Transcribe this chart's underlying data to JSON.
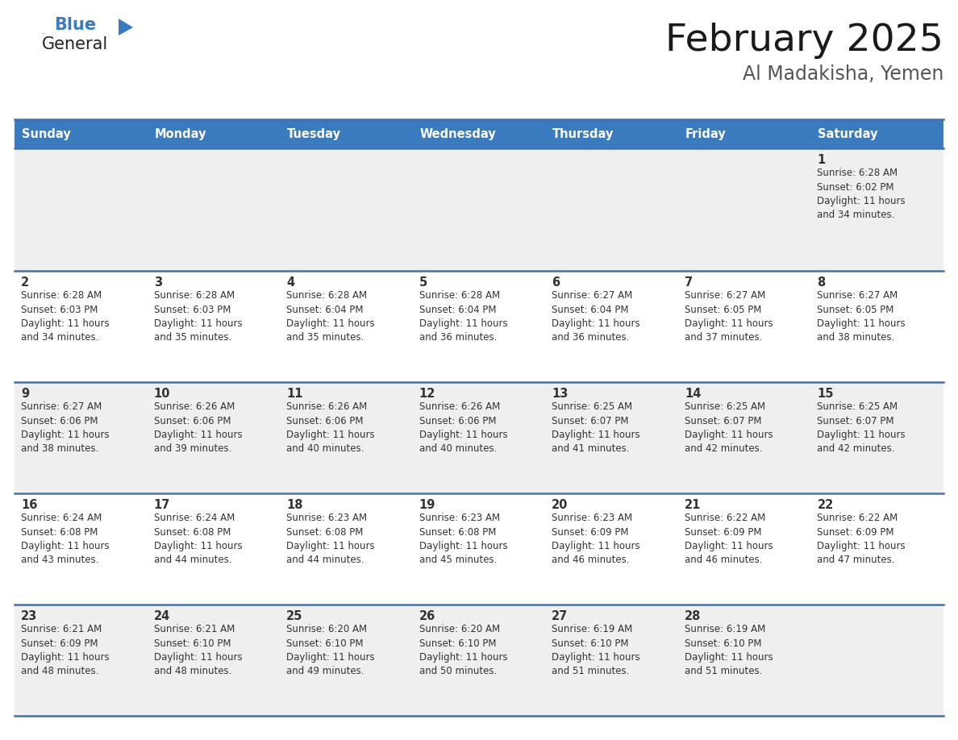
{
  "title": "February 2025",
  "subtitle": "Al Madakisha, Yemen",
  "header_bg": "#3a7abf",
  "header_text": "#ffffff",
  "row_bg_odd": "#efefef",
  "row_bg_even": "#ffffff",
  "border_color": "#4472a8",
  "text_color": "#333333",
  "days_of_week": [
    "Sunday",
    "Monday",
    "Tuesday",
    "Wednesday",
    "Thursday",
    "Friday",
    "Saturday"
  ],
  "calendar_data": [
    [
      null,
      null,
      null,
      null,
      null,
      null,
      {
        "day": "1",
        "sunrise": "6:28 AM",
        "sunset": "6:02 PM",
        "daylight": "11 hours\nand 34 minutes."
      }
    ],
    [
      {
        "day": "2",
        "sunrise": "6:28 AM",
        "sunset": "6:03 PM",
        "daylight": "11 hours\nand 34 minutes."
      },
      {
        "day": "3",
        "sunrise": "6:28 AM",
        "sunset": "6:03 PM",
        "daylight": "11 hours\nand 35 minutes."
      },
      {
        "day": "4",
        "sunrise": "6:28 AM",
        "sunset": "6:04 PM",
        "daylight": "11 hours\nand 35 minutes."
      },
      {
        "day": "5",
        "sunrise": "6:28 AM",
        "sunset": "6:04 PM",
        "daylight": "11 hours\nand 36 minutes."
      },
      {
        "day": "6",
        "sunrise": "6:27 AM",
        "sunset": "6:04 PM",
        "daylight": "11 hours\nand 36 minutes."
      },
      {
        "day": "7",
        "sunrise": "6:27 AM",
        "sunset": "6:05 PM",
        "daylight": "11 hours\nand 37 minutes."
      },
      {
        "day": "8",
        "sunrise": "6:27 AM",
        "sunset": "6:05 PM",
        "daylight": "11 hours\nand 38 minutes."
      }
    ],
    [
      {
        "day": "9",
        "sunrise": "6:27 AM",
        "sunset": "6:06 PM",
        "daylight": "11 hours\nand 38 minutes."
      },
      {
        "day": "10",
        "sunrise": "6:26 AM",
        "sunset": "6:06 PM",
        "daylight": "11 hours\nand 39 minutes."
      },
      {
        "day": "11",
        "sunrise": "6:26 AM",
        "sunset": "6:06 PM",
        "daylight": "11 hours\nand 40 minutes."
      },
      {
        "day": "12",
        "sunrise": "6:26 AM",
        "sunset": "6:06 PM",
        "daylight": "11 hours\nand 40 minutes."
      },
      {
        "day": "13",
        "sunrise": "6:25 AM",
        "sunset": "6:07 PM",
        "daylight": "11 hours\nand 41 minutes."
      },
      {
        "day": "14",
        "sunrise": "6:25 AM",
        "sunset": "6:07 PM",
        "daylight": "11 hours\nand 42 minutes."
      },
      {
        "day": "15",
        "sunrise": "6:25 AM",
        "sunset": "6:07 PM",
        "daylight": "11 hours\nand 42 minutes."
      }
    ],
    [
      {
        "day": "16",
        "sunrise": "6:24 AM",
        "sunset": "6:08 PM",
        "daylight": "11 hours\nand 43 minutes."
      },
      {
        "day": "17",
        "sunrise": "6:24 AM",
        "sunset": "6:08 PM",
        "daylight": "11 hours\nand 44 minutes."
      },
      {
        "day": "18",
        "sunrise": "6:23 AM",
        "sunset": "6:08 PM",
        "daylight": "11 hours\nand 44 minutes."
      },
      {
        "day": "19",
        "sunrise": "6:23 AM",
        "sunset": "6:08 PM",
        "daylight": "11 hours\nand 45 minutes."
      },
      {
        "day": "20",
        "sunrise": "6:23 AM",
        "sunset": "6:09 PM",
        "daylight": "11 hours\nand 46 minutes."
      },
      {
        "day": "21",
        "sunrise": "6:22 AM",
        "sunset": "6:09 PM",
        "daylight": "11 hours\nand 46 minutes."
      },
      {
        "day": "22",
        "sunrise": "6:22 AM",
        "sunset": "6:09 PM",
        "daylight": "11 hours\nand 47 minutes."
      }
    ],
    [
      {
        "day": "23",
        "sunrise": "6:21 AM",
        "sunset": "6:09 PM",
        "daylight": "11 hours\nand 48 minutes."
      },
      {
        "day": "24",
        "sunrise": "6:21 AM",
        "sunset": "6:10 PM",
        "daylight": "11 hours\nand 48 minutes."
      },
      {
        "day": "25",
        "sunrise": "6:20 AM",
        "sunset": "6:10 PM",
        "daylight": "11 hours\nand 49 minutes."
      },
      {
        "day": "26",
        "sunrise": "6:20 AM",
        "sunset": "6:10 PM",
        "daylight": "11 hours\nand 50 minutes."
      },
      {
        "day": "27",
        "sunrise": "6:19 AM",
        "sunset": "6:10 PM",
        "daylight": "11 hours\nand 51 minutes."
      },
      {
        "day": "28",
        "sunrise": "6:19 AM",
        "sunset": "6:10 PM",
        "daylight": "11 hours\nand 51 minutes."
      },
      null
    ]
  ],
  "logo_general_color": "#222222",
  "logo_blue_color": "#3a7abf",
  "logo_triangle_color": "#3a7abf"
}
